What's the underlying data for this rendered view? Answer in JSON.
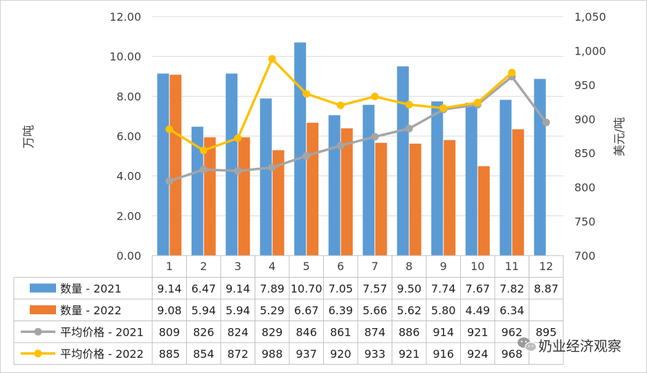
{
  "chart_data": {
    "type": "bar+line",
    "categories": [
      "1",
      "2",
      "3",
      "4",
      "5",
      "6",
      "7",
      "8",
      "9",
      "10",
      "11",
      "12"
    ],
    "bar_series": [
      {
        "name": "数量 - 2021",
        "color": "#5B9BD5",
        "values": [
          9.14,
          6.47,
          9.14,
          7.89,
          10.7,
          7.05,
          7.57,
          9.5,
          7.74,
          7.67,
          7.82,
          8.87
        ],
        "labels": [
          "9.14",
          "6.47",
          "9.14",
          "7.89",
          "10.70",
          "7.05",
          "7.57",
          "9.50",
          "7.74",
          "7.67",
          "7.82",
          "8.87"
        ]
      },
      {
        "name": "数量 - 2022",
        "color": "#ED7D31",
        "values": [
          9.08,
          5.94,
          5.94,
          5.29,
          6.67,
          6.39,
          5.66,
          5.62,
          5.8,
          4.49,
          6.34,
          null
        ],
        "labels": [
          "9.08",
          "5.94",
          "5.94",
          "5.29",
          "6.67",
          "6.39",
          "5.66",
          "5.62",
          "5.80",
          "4.49",
          "6.34",
          ""
        ]
      }
    ],
    "line_series": [
      {
        "name": "平均价格 - 2021",
        "color": "#A5A5A5",
        "values": [
          809,
          826,
          824,
          829,
          846,
          861,
          874,
          886,
          914,
          921,
          962,
          895
        ],
        "labels": [
          "809",
          "826",
          "824",
          "829",
          "846",
          "861",
          "874",
          "886",
          "914",
          "921",
          "962",
          "895"
        ]
      },
      {
        "name": "平均价格 - 2022",
        "color": "#FFC000",
        "values": [
          885,
          854,
          872,
          988,
          937,
          920,
          933,
          921,
          916,
          924,
          968,
          null
        ],
        "labels": [
          "885",
          "854",
          "872",
          "988",
          "937",
          "920",
          "933",
          "921",
          "916",
          "924",
          "968",
          ""
        ]
      }
    ],
    "y_left": {
      "label": "万吨",
      "min": 0,
      "max": 12,
      "ticks": [
        "0.00",
        "2.00",
        "4.00",
        "6.00",
        "8.00",
        "10.00",
        "12.00"
      ]
    },
    "y_right": {
      "label": "美元/吨",
      "min": 700,
      "max": 1050,
      "ticks": [
        "700",
        "750",
        "800",
        "850",
        "900",
        "950",
        "1,000",
        "1,050"
      ]
    },
    "data_table": true,
    "gridlines": true
  },
  "watermark": {
    "text": "奶业经济观察",
    "icon": "wechat-icon"
  }
}
